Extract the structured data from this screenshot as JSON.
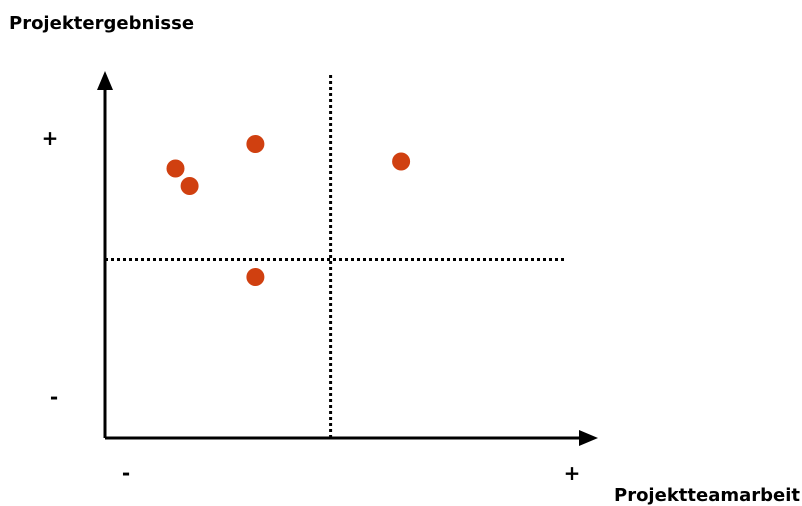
{
  "chart_data": {
    "type": "scatter",
    "ylabel": "Projektergebnisse",
    "xlabel": "Projektteamarbeit",
    "x_tick_labels": {
      "min": "-",
      "max": "+"
    },
    "y_tick_labels": {
      "min": "-",
      "max": "+"
    },
    "xlim": [
      0,
      10
    ],
    "ylim": [
      0,
      10
    ],
    "divider_lines": {
      "x": 4.8,
      "y": 5.1
    },
    "colors": {
      "points": "#d04010",
      "axes": "#000000"
    },
    "points": [
      {
        "x": 1.5,
        "y": 7.7
      },
      {
        "x": 1.8,
        "y": 7.2
      },
      {
        "x": 3.2,
        "y": 8.4
      },
      {
        "x": 6.3,
        "y": 7.9
      },
      {
        "x": 3.2,
        "y": 4.6
      }
    ]
  }
}
